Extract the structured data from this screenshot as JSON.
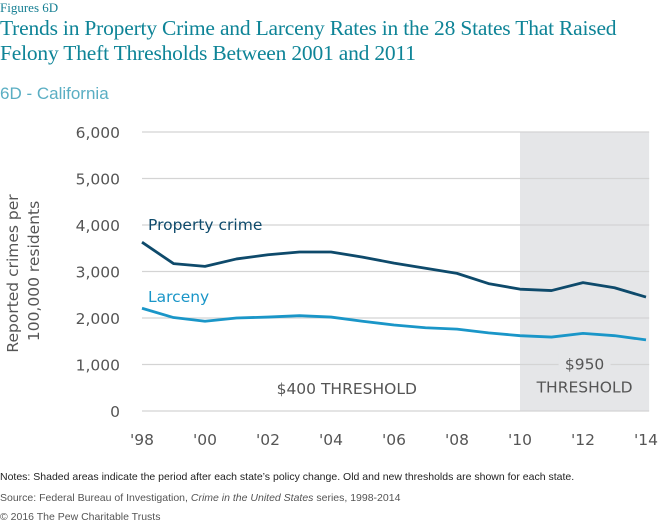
{
  "figure_label": "Figures 6D",
  "title": "Trends in Property Crime and Larceny Rates in the 28 States That Raised Felony Theft Thresholds Between 2001 and 2011",
  "subtitle": "6D - California",
  "colors": {
    "property_crime": "#0e4a6b",
    "larceny": "#1a96c8",
    "shading": "#e5e6e8",
    "gridline": "#d4d4d4",
    "title": "#0e8497"
  },
  "chart_data": {
    "type": "line",
    "title": "6D - California",
    "xlabel": "",
    "ylabel": "Reported crimes per 100,000 residents",
    "x": [
      1998,
      1999,
      2000,
      2001,
      2002,
      2003,
      2004,
      2005,
      2006,
      2007,
      2008,
      2009,
      2010,
      2011,
      2012,
      2013,
      2014
    ],
    "xlim": [
      1998,
      2014
    ],
    "ylim": [
      0,
      6000
    ],
    "x_ticks": [
      1998,
      2000,
      2002,
      2004,
      2006,
      2008,
      2010,
      2012,
      2014
    ],
    "x_tick_labels": [
      "'98",
      "'00",
      "'02",
      "'04",
      "'06",
      "'08",
      "'10",
      "'12",
      "'14"
    ],
    "y_ticks": [
      0,
      1000,
      2000,
      3000,
      4000,
      5000,
      6000
    ],
    "y_tick_labels": [
      "0",
      "1,000",
      "2,000",
      "3,000",
      "4,000",
      "5,000",
      "6,000"
    ],
    "grid": true,
    "series": [
      {
        "name": "Property crime",
        "values": [
          3630,
          3170,
          3110,
          3270,
          3360,
          3420,
          3420,
          3310,
          3180,
          3070,
          2960,
          2740,
          2620,
          2590,
          2760,
          2650,
          2450
        ]
      },
      {
        "name": "Larceny",
        "values": [
          2210,
          2010,
          1930,
          2000,
          2020,
          2050,
          2020,
          1930,
          1850,
          1790,
          1760,
          1680,
          1620,
          1590,
          1670,
          1620,
          1530
        ]
      }
    ],
    "shaded_region": {
      "from": 2010,
      "to": 2014.1,
      "label_lines": [
        "$950",
        "THRESHOLD"
      ]
    },
    "annotations": [
      {
        "text": "$400 THRESHOLD",
        "x": 2004.5,
        "y": 500
      }
    ],
    "legend": "inline-labels-above-lines"
  },
  "footer": {
    "notes": "Notes: Shaded areas indicate the period after each state’s policy change. Old and new thresholds are shown for each state.",
    "source_prefix": "Source: Federal Bureau of Investigation, ",
    "source_italic": "Crime in the United States",
    "source_suffix": " series, 1998-2014",
    "copyright": "© 2016 The Pew Charitable Trusts"
  }
}
